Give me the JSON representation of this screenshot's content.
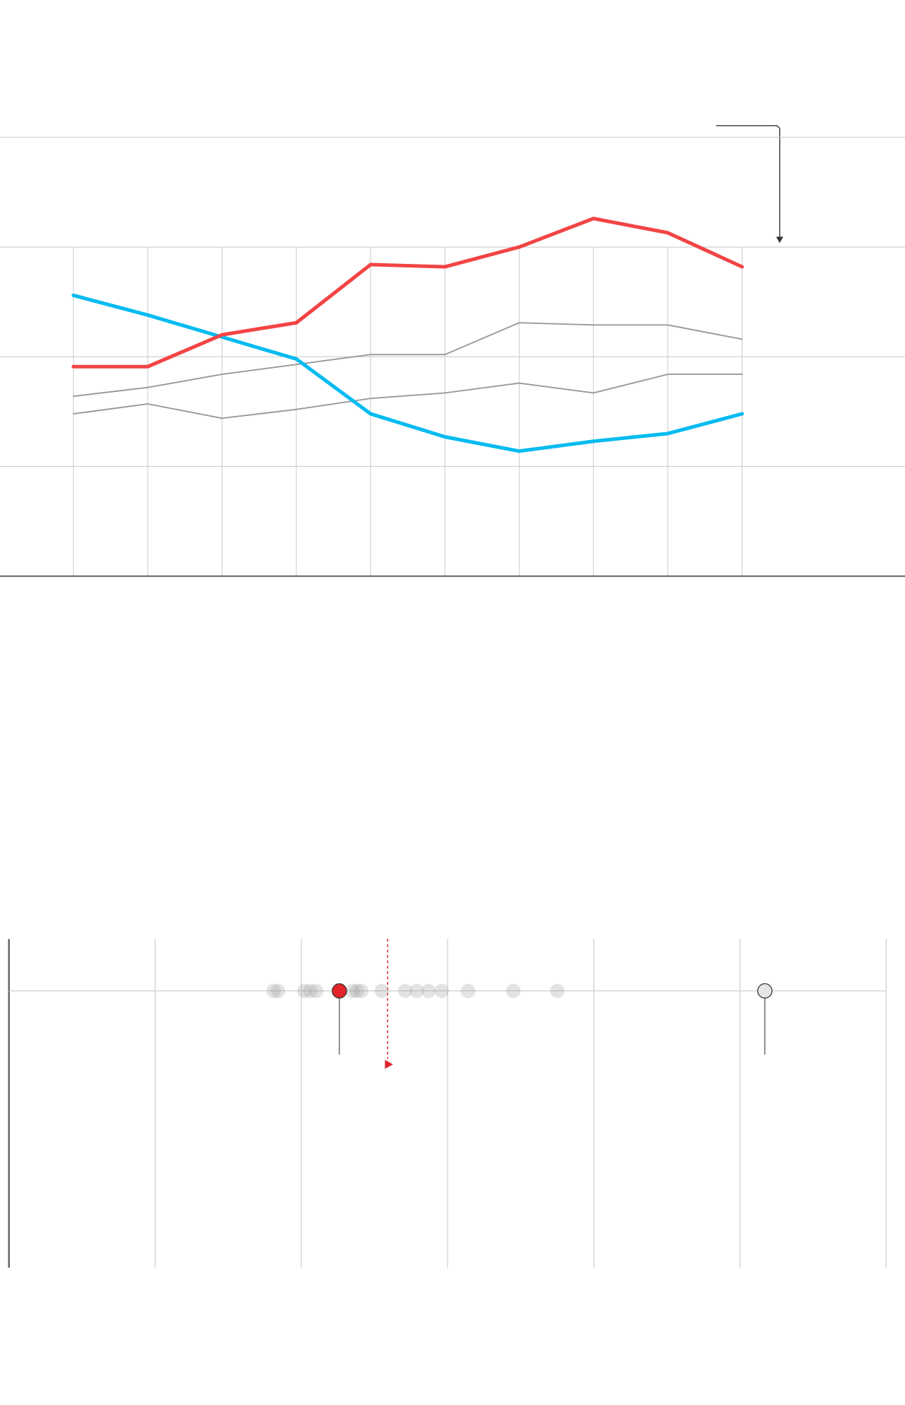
{
  "chart_data": [
    {
      "type": "line",
      "categories": [
        null,
        null,
        null,
        null,
        null,
        null,
        null,
        null,
        null,
        null
      ],
      "series": [
        {
          "color": "#999999",
          "width": 1.5,
          "values": [
            1.64,
            1.72,
            1.84,
            1.93,
            2.02,
            2.02,
            2.31,
            2.29,
            2.29,
            2.16
          ]
        },
        {
          "color": "#999999",
          "width": 1.5,
          "values": [
            1.48,
            1.57,
            1.44,
            1.52,
            1.62,
            1.67,
            1.76,
            1.67,
            1.84,
            1.84
          ]
        },
        {
          "color": "#00bbf0",
          "width": 4,
          "values": [
            2.56,
            2.38,
            2.18,
            1.98,
            1.48,
            1.27,
            1.14,
            1.23,
            1.3,
            1.48
          ]
        },
        {
          "color": "#f24444",
          "width": 4,
          "values": [
            1.91,
            1.91,
            2.2,
            2.31,
            2.84,
            2.82,
            3.0,
            3.26,
            3.13,
            2.82
          ]
        }
      ],
      "ylim": [
        0,
        4
      ],
      "yticks": [
        0,
        1,
        2,
        3,
        4
      ],
      "grid": true
    },
    {
      "type": "strip",
      "series": [
        {
          "color": "#9a9a9a",
          "values": [
            1.81,
            1.84,
            2.02,
            2.06,
            2.1,
            2.35,
            2.38,
            2.41,
            2.55,
            2.71,
            2.79,
            2.87,
            2.96,
            3.14,
            3.45,
            3.75
          ]
        },
        {
          "color": "#e3242b",
          "values": [
            2.26
          ]
        },
        {
          "color": "#e6e6e6",
          "values": [
            5.17
          ]
        }
      ],
      "reference": {
        "color": "#e3242b",
        "value": 2.59
      },
      "xlim": [
        0,
        6
      ],
      "xticks": [
        0,
        1,
        2,
        3,
        4,
        5,
        6
      ],
      "grid": true
    }
  ]
}
